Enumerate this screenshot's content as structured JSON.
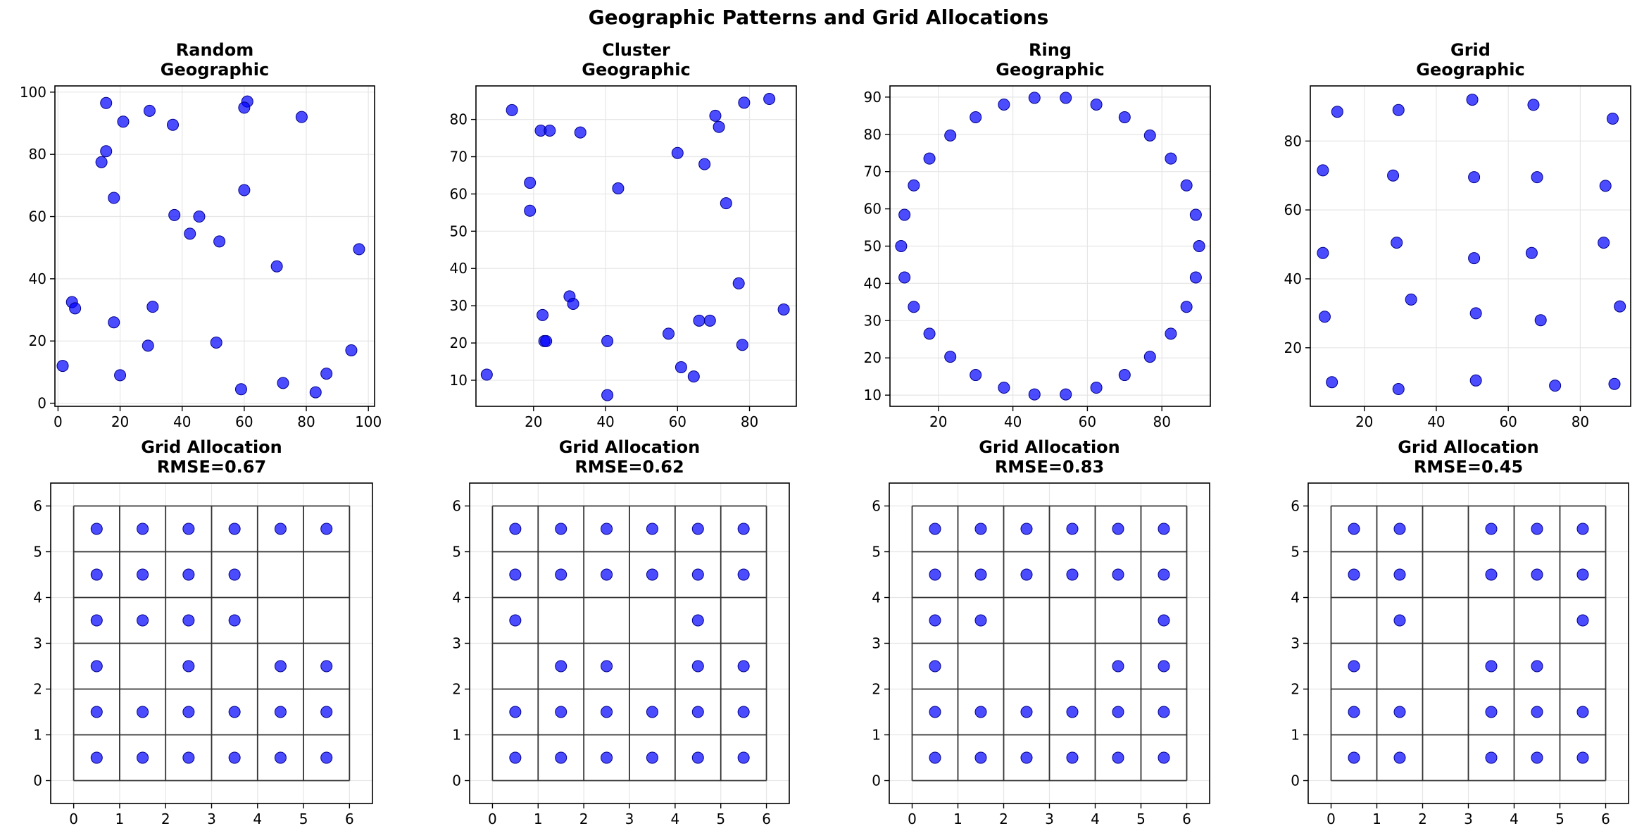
{
  "title": "Geographic Patterns and Grid Allocations",
  "colors": {
    "point": "#0000ff",
    "point_edge": "#00008b",
    "grid_line": "#333333",
    "gridlines": "#e6e6e6"
  },
  "chart_data": [
    {
      "type": "scatter",
      "title": "Random\nGeographic",
      "xlim": [
        -1,
        102
      ],
      "ylim": [
        -1,
        102
      ],
      "xticks": [
        0,
        20,
        40,
        60,
        80,
        100
      ],
      "yticks": [
        0,
        20,
        40,
        60,
        80,
        100
      ],
      "grid": true,
      "points": [
        [
          15.5,
          96.5
        ],
        [
          61,
          97
        ],
        [
          60,
          95
        ],
        [
          29.5,
          94
        ],
        [
          78.5,
          92
        ],
        [
          21,
          90.5
        ],
        [
          37,
          89.5
        ],
        [
          15.5,
          81
        ],
        [
          14,
          77.5
        ],
        [
          60,
          68.5
        ],
        [
          18,
          66
        ],
        [
          37.5,
          60.5
        ],
        [
          45.5,
          60
        ],
        [
          42.5,
          54.5
        ],
        [
          52,
          52
        ],
        [
          97,
          49.5
        ],
        [
          70.5,
          44
        ],
        [
          4.5,
          32.5
        ],
        [
          5.5,
          30.5
        ],
        [
          30.5,
          31
        ],
        [
          18,
          26
        ],
        [
          29,
          18.5
        ],
        [
          51,
          19.5
        ],
        [
          94.5,
          17
        ],
        [
          1.5,
          12
        ],
        [
          86.5,
          9.5
        ],
        [
          20,
          9
        ],
        [
          72.5,
          6.5
        ],
        [
          59,
          4.5
        ],
        [
          83,
          3.5
        ]
      ]
    },
    {
      "type": "scatter",
      "title": "Cluster\nGeographic",
      "xlim": [
        4,
        93
      ],
      "ylim": [
        3,
        89
      ],
      "xticks": [
        20,
        40,
        60,
        80
      ],
      "yticks": [
        10,
        20,
        30,
        40,
        50,
        60,
        70,
        80
      ],
      "grid": true,
      "points": [
        [
          14,
          82.5
        ],
        [
          85.5,
          85.5
        ],
        [
          78.5,
          84.5
        ],
        [
          70.5,
          81
        ],
        [
          71.5,
          78
        ],
        [
          22,
          77
        ],
        [
          24.5,
          77
        ],
        [
          33,
          76.5
        ],
        [
          60,
          71
        ],
        [
          67.5,
          68
        ],
        [
          19,
          63
        ],
        [
          43.5,
          61.5
        ],
        [
          19,
          55.5
        ],
        [
          73.5,
          57.5
        ],
        [
          77,
          36
        ],
        [
          89.5,
          29
        ],
        [
          30,
          32.5
        ],
        [
          31,
          30.5
        ],
        [
          22.5,
          27.5
        ],
        [
          66,
          26
        ],
        [
          69,
          26
        ],
        [
          23,
          20.5
        ],
        [
          23.5,
          20.5
        ],
        [
          40.5,
          20.5
        ],
        [
          57.5,
          22.5
        ],
        [
          78,
          19.5
        ],
        [
          61,
          13.5
        ],
        [
          64.5,
          11
        ],
        [
          7,
          11.5
        ],
        [
          40.5,
          6
        ]
      ]
    },
    {
      "type": "scatter",
      "title": "Ring\nGeographic",
      "xlim": [
        7,
        93
      ],
      "ylim": [
        7,
        93
      ],
      "xticks": [
        20,
        40,
        60,
        80
      ],
      "yticks": [
        10,
        20,
        30,
        40,
        50,
        60,
        70,
        80,
        90
      ],
      "grid": true,
      "points": [
        [
          90,
          50
        ],
        [
          89.1,
          58.4
        ],
        [
          86.6,
          66.3
        ],
        [
          82.4,
          73.5
        ],
        [
          76.8,
          79.7
        ],
        [
          70,
          84.6
        ],
        [
          62.4,
          88
        ],
        [
          54.2,
          89.8
        ],
        [
          45.8,
          89.8
        ],
        [
          37.6,
          88
        ],
        [
          30,
          84.6
        ],
        [
          23.2,
          79.7
        ],
        [
          17.6,
          73.5
        ],
        [
          13.4,
          66.3
        ],
        [
          10.9,
          58.4
        ],
        [
          10,
          50
        ],
        [
          10.9,
          41.6
        ],
        [
          13.4,
          33.7
        ],
        [
          17.6,
          26.5
        ],
        [
          23.2,
          20.3
        ],
        [
          30,
          15.4
        ],
        [
          37.6,
          12
        ],
        [
          45.8,
          10.2
        ],
        [
          54.2,
          10.2
        ],
        [
          62.4,
          12
        ],
        [
          70,
          15.4
        ],
        [
          76.8,
          20.3
        ],
        [
          82.4,
          26.5
        ],
        [
          86.6,
          33.7
        ],
        [
          89.1,
          41.6
        ]
      ]
    },
    {
      "type": "scatter",
      "title": "Grid\nGeographic",
      "xlim": [
        5,
        94
      ],
      "ylim": [
        3,
        96
      ],
      "xticks": [
        20,
        40,
        60,
        80
      ],
      "yticks": [
        20,
        40,
        60,
        80
      ],
      "grid": true,
      "points": [
        [
          12.5,
          88.5
        ],
        [
          29.5,
          89
        ],
        [
          50,
          92
        ],
        [
          67,
          90.5
        ],
        [
          89,
          86.5
        ],
        [
          8.5,
          71.5
        ],
        [
          28,
          70
        ],
        [
          50.5,
          69.5
        ],
        [
          68,
          69.5
        ],
        [
          87,
          67
        ],
        [
          8.5,
          47.5
        ],
        [
          29,
          50.5
        ],
        [
          50.5,
          46
        ],
        [
          66.5,
          47.5
        ],
        [
          86.5,
          50.5
        ],
        [
          9,
          29
        ],
        [
          33,
          34
        ],
        [
          51,
          30
        ],
        [
          69,
          28
        ],
        [
          91,
          32
        ],
        [
          11,
          10
        ],
        [
          29.5,
          8
        ],
        [
          51,
          10.5
        ],
        [
          73,
          9
        ],
        [
          89.5,
          9.5
        ]
      ]
    },
    {
      "type": "scatter",
      "title": "Grid Allocation\nRMSE=0.67",
      "xlim": [
        -0.5,
        6.5
      ],
      "ylim": [
        -0.5,
        6.5
      ],
      "xticks": [
        0,
        1,
        2,
        3,
        4,
        5,
        6
      ],
      "yticks": [
        0,
        1,
        2,
        3,
        4,
        5,
        6
      ],
      "grid": true,
      "cells": 6,
      "points": [
        [
          0.5,
          5.5
        ],
        [
          1.5,
          5.5
        ],
        [
          2.5,
          5.5
        ],
        [
          3.5,
          5.5
        ],
        [
          4.5,
          5.5
        ],
        [
          5.5,
          5.5
        ],
        [
          0.5,
          4.5
        ],
        [
          1.5,
          4.5
        ],
        [
          2.5,
          4.5
        ],
        [
          3.5,
          4.5
        ],
        [
          0.5,
          3.5
        ],
        [
          1.5,
          3.5
        ],
        [
          2.5,
          3.5
        ],
        [
          3.5,
          3.5
        ],
        [
          0.5,
          2.5
        ],
        [
          2.5,
          2.5
        ],
        [
          4.5,
          2.5
        ],
        [
          5.5,
          2.5
        ],
        [
          0.5,
          1.5
        ],
        [
          1.5,
          1.5
        ],
        [
          2.5,
          1.5
        ],
        [
          3.5,
          1.5
        ],
        [
          4.5,
          1.5
        ],
        [
          5.5,
          1.5
        ],
        [
          0.5,
          0.5
        ],
        [
          1.5,
          0.5
        ],
        [
          2.5,
          0.5
        ],
        [
          3.5,
          0.5
        ],
        [
          4.5,
          0.5
        ],
        [
          5.5,
          0.5
        ]
      ]
    },
    {
      "type": "scatter",
      "title": "Grid Allocation\nRMSE=0.62",
      "xlim": [
        -0.5,
        6.5
      ],
      "ylim": [
        -0.5,
        6.5
      ],
      "xticks": [
        0,
        1,
        2,
        3,
        4,
        5,
        6
      ],
      "yticks": [
        0,
        1,
        2,
        3,
        4,
        5,
        6
      ],
      "grid": true,
      "cells": 6,
      "points": [
        [
          0.5,
          5.5
        ],
        [
          1.5,
          5.5
        ],
        [
          2.5,
          5.5
        ],
        [
          3.5,
          5.5
        ],
        [
          4.5,
          5.5
        ],
        [
          5.5,
          5.5
        ],
        [
          0.5,
          4.5
        ],
        [
          1.5,
          4.5
        ],
        [
          2.5,
          4.5
        ],
        [
          3.5,
          4.5
        ],
        [
          4.5,
          4.5
        ],
        [
          5.5,
          4.5
        ],
        [
          0.5,
          3.5
        ],
        [
          4.5,
          3.5
        ],
        [
          1.5,
          2.5
        ],
        [
          2.5,
          2.5
        ],
        [
          4.5,
          2.5
        ],
        [
          5.5,
          2.5
        ],
        [
          0.5,
          1.5
        ],
        [
          1.5,
          1.5
        ],
        [
          2.5,
          1.5
        ],
        [
          3.5,
          1.5
        ],
        [
          4.5,
          1.5
        ],
        [
          5.5,
          1.5
        ],
        [
          0.5,
          0.5
        ],
        [
          1.5,
          0.5
        ],
        [
          2.5,
          0.5
        ],
        [
          3.5,
          0.5
        ],
        [
          4.5,
          0.5
        ],
        [
          5.5,
          0.5
        ]
      ]
    },
    {
      "type": "scatter",
      "title": "Grid Allocation\nRMSE=0.83",
      "xlim": [
        -0.5,
        6.5
      ],
      "ylim": [
        -0.5,
        6.5
      ],
      "xticks": [
        0,
        1,
        2,
        3,
        4,
        5,
        6
      ],
      "yticks": [
        0,
        1,
        2,
        3,
        4,
        5,
        6
      ],
      "grid": true,
      "cells": 6,
      "points": [
        [
          0.5,
          5.5
        ],
        [
          1.5,
          5.5
        ],
        [
          2.5,
          5.5
        ],
        [
          3.5,
          5.5
        ],
        [
          4.5,
          5.5
        ],
        [
          5.5,
          5.5
        ],
        [
          0.5,
          4.5
        ],
        [
          1.5,
          4.5
        ],
        [
          2.5,
          4.5
        ],
        [
          3.5,
          4.5
        ],
        [
          4.5,
          4.5
        ],
        [
          5.5,
          4.5
        ],
        [
          0.5,
          3.5
        ],
        [
          1.5,
          3.5
        ],
        [
          5.5,
          3.5
        ],
        [
          0.5,
          2.5
        ],
        [
          4.5,
          2.5
        ],
        [
          5.5,
          2.5
        ],
        [
          0.5,
          1.5
        ],
        [
          1.5,
          1.5
        ],
        [
          2.5,
          1.5
        ],
        [
          3.5,
          1.5
        ],
        [
          4.5,
          1.5
        ],
        [
          5.5,
          1.5
        ],
        [
          0.5,
          0.5
        ],
        [
          1.5,
          0.5
        ],
        [
          2.5,
          0.5
        ],
        [
          3.5,
          0.5
        ],
        [
          4.5,
          0.5
        ],
        [
          5.5,
          0.5
        ]
      ]
    },
    {
      "type": "scatter",
      "title": "Grid Allocation\nRMSE=0.45",
      "xlim": [
        -0.5,
        6.5
      ],
      "ylim": [
        -0.5,
        6.5
      ],
      "xticks": [
        0,
        1,
        2,
        3,
        4,
        5,
        6
      ],
      "yticks": [
        0,
        1,
        2,
        3,
        4,
        5,
        6
      ],
      "grid": true,
      "cells": 6,
      "points": [
        [
          0.5,
          5.5
        ],
        [
          1.5,
          5.5
        ],
        [
          3.5,
          5.5
        ],
        [
          4.5,
          5.5
        ],
        [
          5.5,
          5.5
        ],
        [
          0.5,
          4.5
        ],
        [
          1.5,
          4.5
        ],
        [
          3.5,
          4.5
        ],
        [
          4.5,
          4.5
        ],
        [
          5.5,
          4.5
        ],
        [
          1.5,
          3.5
        ],
        [
          5.5,
          3.5
        ],
        [
          0.5,
          2.5
        ],
        [
          3.5,
          2.5
        ],
        [
          4.5,
          2.5
        ],
        [
          0.5,
          1.5
        ],
        [
          1.5,
          1.5
        ],
        [
          3.5,
          1.5
        ],
        [
          4.5,
          1.5
        ],
        [
          5.5,
          1.5
        ],
        [
          0.5,
          0.5
        ],
        [
          1.5,
          0.5
        ],
        [
          3.5,
          0.5
        ],
        [
          4.5,
          0.5
        ],
        [
          5.5,
          0.5
        ]
      ]
    }
  ]
}
